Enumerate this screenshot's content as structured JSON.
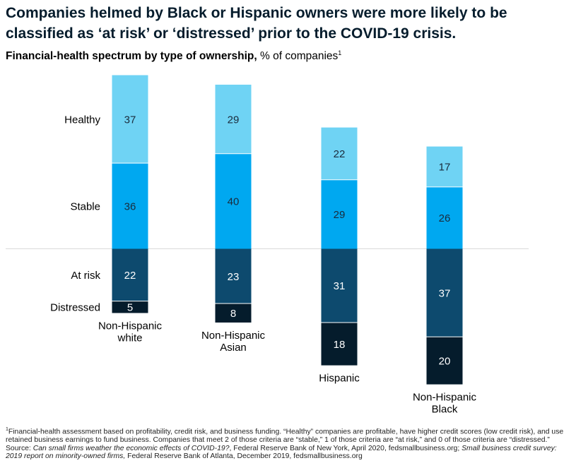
{
  "title": "Companies helmed by Black or Hispanic owners were more likely to be classified as ‘at risk’ or ‘distressed’ prior to the COVID-19 crisis.",
  "subtitle": {
    "bold": "Financial-health spectrum by type of ownership,",
    "rest": " % of companies",
    "marker": "1"
  },
  "chart_data": {
    "type": "bar",
    "stacked": true,
    "baseline": "divergent at boundary between Stable and At risk",
    "categories": [
      "Non-Hispanic white",
      "Non-Hispanic Asian",
      "Hispanic",
      "Non-Hispanic Black"
    ],
    "category_labels": [
      [
        "Non-Hispanic",
        "white"
      ],
      [
        "Non-Hispanic",
        "Asian"
      ],
      [
        "Hispanic"
      ],
      [
        "Non-Hispanic",
        "Black"
      ]
    ],
    "row_labels": [
      "Healthy",
      "Stable",
      "At risk",
      "Distressed"
    ],
    "series": [
      {
        "name": "Healthy",
        "values": [
          37,
          29,
          22,
          17
        ],
        "color": "#6fd3f4",
        "text_color": "#1a2b3c",
        "direction": "up"
      },
      {
        "name": "Stable",
        "values": [
          36,
          40,
          29,
          26
        ],
        "color": "#00a8f0",
        "text_color": "#1a2b3c",
        "direction": "up"
      },
      {
        "name": "At risk",
        "values": [
          22,
          23,
          31,
          37
        ],
        "color": "#0d4a6e",
        "text_color": "#ffffff",
        "direction": "down"
      },
      {
        "name": "Distressed",
        "values": [
          5,
          8,
          18,
          20
        ],
        "color": "#051c2c",
        "text_color": "#ffffff",
        "direction": "down"
      }
    ],
    "grid": false,
    "baseline_line_color": "#d9d9d9"
  },
  "footnote": {
    "marker": "1",
    "text": "Financial-health assessment based on profitability, credit risk, and business funding. “Healthy” companies are profitable, have higher credit scores (low credit risk), and use retained business earnings to fund business. Companies that meet 2 of those criteria are “stable,” 1 of those criteria are “at risk,” and 0 of those criteria are “distressed.”"
  },
  "source": {
    "prefix": "Source: ",
    "title1": "Can small firms weather the economic effects of COVID-19?",
    "mid": ", Federal Reserve Bank of New York, April 2020, fedsmallbusiness.org; ",
    "title2": "Small business credit survey: 2019 report on minority-owned firms,",
    "end": " Federal Reserve Bank of Atlanta, December 2019, fedsmallbusiness.org"
  }
}
